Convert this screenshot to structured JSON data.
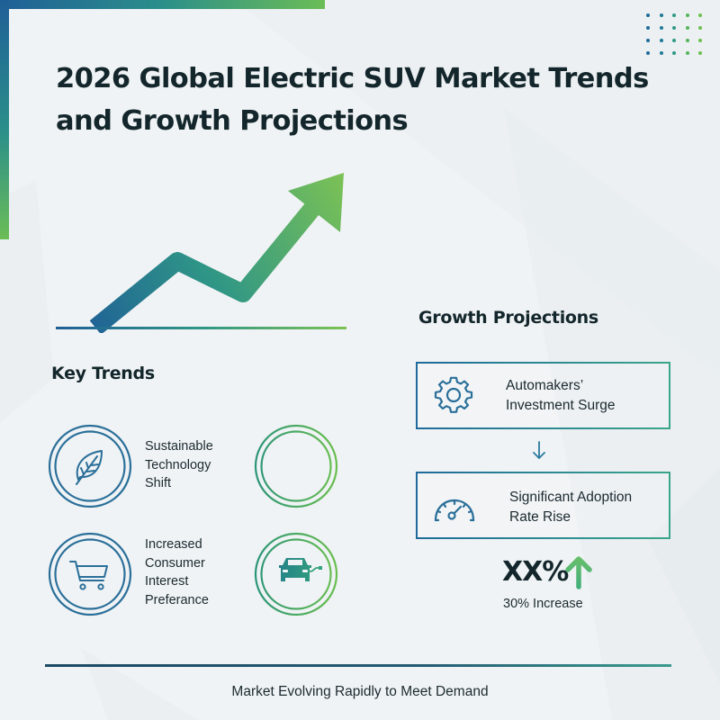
{
  "title": {
    "line1": "2026 Global Electric SUV Market Trends",
    "line2": "and Growth Projections"
  },
  "colors": {
    "blue": "#1f5f97",
    "teal": "#2b8f8a",
    "green": "#6bbd56",
    "text": "#13262b",
    "background": "#f0f3f5"
  },
  "hero_graphic": {
    "icon": "rising-trend-arrow",
    "description": "zigzag upward trend arrow on baseline"
  },
  "key_trends": {
    "heading": "Key Trends",
    "items": [
      {
        "icon": "leaf-icon",
        "lines": [
          "Sustainable",
          "Technology",
          "Shift"
        ]
      },
      {
        "icon": "empty-ring",
        "lines": []
      },
      {
        "icon": "shopping-cart-icon",
        "lines": [
          "Increased",
          "Consumer",
          "Interest",
          "Preferance"
        ]
      },
      {
        "icon": "electric-car-icon",
        "lines": []
      }
    ]
  },
  "growth_projections": {
    "heading": "Growth Projections",
    "steps": [
      {
        "icon": "gear-icon",
        "lines": [
          "Automakers’",
          "Investment Surge"
        ]
      },
      {
        "icon": "speedometer-icon",
        "lines": [
          "Significant Adoption",
          "Rate Rise"
        ]
      }
    ],
    "connector_icon": "down-arrow-icon",
    "stat": {
      "value": "XX%",
      "icon": "up-arrow-icon",
      "caption": "30% Increase"
    }
  },
  "footer": {
    "text": "Market Evolving Rapidly to Meet Demand"
  }
}
